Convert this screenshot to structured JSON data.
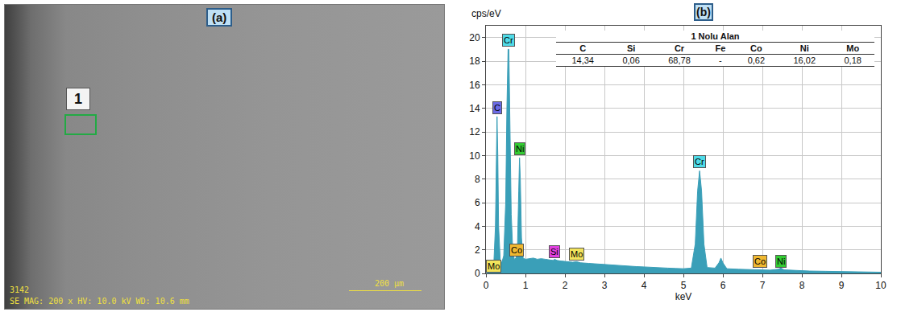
{
  "panel_a": {
    "label": "(a)",
    "region_label": "1",
    "footer_id": "3142",
    "footer_info": "SE MAG: 200 x HV: 10.0 kV WD: 10.6 mm",
    "scale_bar": "200 µm"
  },
  "chart_data": {
    "type": "area",
    "panel_label": "(b)",
    "y_label": "cps/eV",
    "x_label": "keV",
    "color": "#3a9fb8",
    "x": [
      0.0,
      0.1,
      0.15,
      0.2,
      0.24,
      0.26,
      0.28,
      0.3,
      0.32,
      0.36,
      0.4,
      0.45,
      0.5,
      0.53,
      0.56,
      0.58,
      0.61,
      0.64,
      0.68,
      0.72,
      0.76,
      0.8,
      0.83,
      0.85,
      0.87,
      0.9,
      0.94,
      1.0,
      1.1,
      1.2,
      1.3,
      1.4,
      1.5,
      1.6,
      1.7,
      1.74,
      1.8,
      1.9,
      2.0,
      2.2,
      2.29,
      2.4,
      2.6,
      2.8,
      3.0,
      3.2,
      3.4,
      3.6,
      3.8,
      4.0,
      4.2,
      4.4,
      4.6,
      4.8,
      5.0,
      5.2,
      5.3,
      5.36,
      5.41,
      5.46,
      5.52,
      5.6,
      5.8,
      5.9,
      5.95,
      6.0,
      6.1,
      6.4,
      6.8,
      7.2,
      7.4,
      7.47,
      7.55,
      7.8,
      8.2,
      8.6,
      9.0,
      9.5,
      10.0
    ],
    "values": [
      0,
      0.05,
      0.3,
      0.9,
      4,
      10,
      13.3,
      10,
      4,
      1.2,
      0.9,
      1.5,
      6,
      14,
      19,
      19,
      13,
      5,
      1.8,
      1.2,
      1.3,
      2.5,
      7,
      9.8,
      8,
      3,
      1.3,
      1.2,
      1.25,
      1.3,
      1.2,
      1.25,
      1.2,
      1.15,
      1.1,
      1.2,
      1.1,
      1.05,
      1.0,
      0.95,
      1.0,
      0.9,
      0.85,
      0.8,
      0.75,
      0.7,
      0.65,
      0.6,
      0.58,
      0.55,
      0.5,
      0.48,
      0.45,
      0.42,
      0.4,
      0.45,
      2.5,
      7,
      8.7,
      7,
      2.5,
      0.5,
      0.45,
      0.9,
      1.3,
      0.9,
      0.4,
      0.35,
      0.3,
      0.28,
      0.35,
      0.45,
      0.3,
      0.25,
      0.2,
      0.18,
      0.15,
      0.12,
      0.1
    ],
    "xlim": [
      0,
      10
    ],
    "ylim": [
      0,
      21
    ],
    "xticks": [
      0,
      1,
      2,
      3,
      4,
      5,
      6,
      7,
      8,
      9,
      10
    ],
    "yticks": [
      0,
      2,
      4,
      6,
      8,
      10,
      12,
      14,
      16,
      18,
      20
    ],
    "grid": true,
    "annotations": [
      {
        "text": "Cr",
        "x": 0.57,
        "y": 19.2,
        "color": "#4fdbe8"
      },
      {
        "text": "C",
        "x": 0.28,
        "y": 13.5,
        "color": "#6b6be6"
      },
      {
        "text": "Ni",
        "x": 0.85,
        "y": 10.0,
        "color": "#33cc33"
      },
      {
        "text": "Mo",
        "x": 0.2,
        "y": 0.1,
        "color": "#f2e35c"
      },
      {
        "text": "Co",
        "x": 0.78,
        "y": 1.4,
        "color": "#f0b830"
      },
      {
        "text": "Si",
        "x": 1.74,
        "y": 1.3,
        "color": "#e040e0"
      },
      {
        "text": "Mo",
        "x": 2.29,
        "y": 1.1,
        "color": "#f2e35c"
      },
      {
        "text": "Cr",
        "x": 5.41,
        "y": 8.9,
        "color": "#4fdbe8"
      },
      {
        "text": "Co",
        "x": 6.93,
        "y": 0.45,
        "color": "#f0b830"
      },
      {
        "text": "Ni",
        "x": 7.47,
        "y": 0.5,
        "color": "#33cc33"
      }
    ],
    "table": {
      "title": "1 Nolu Alan",
      "header": [
        "C",
        "Si",
        "Cr",
        "Fe",
        "Co",
        "Ni",
        "Mo"
      ],
      "rows": [
        [
          "14,34",
          "0,06",
          "68,78",
          "-",
          "0,62",
          "16,02",
          "0,18"
        ]
      ]
    }
  }
}
